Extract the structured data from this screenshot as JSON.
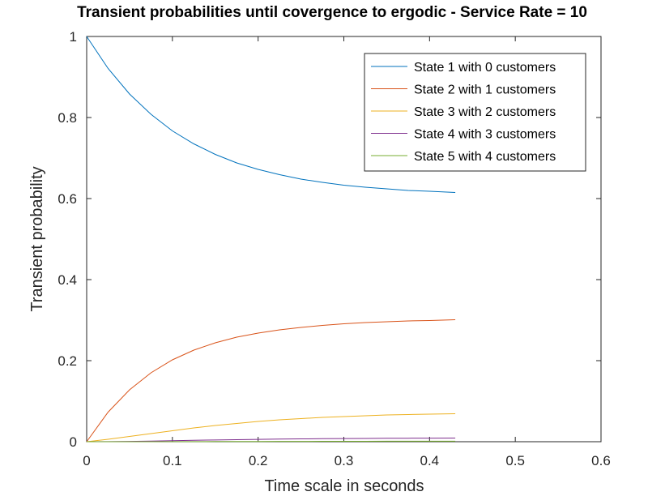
{
  "chart_data": {
    "type": "line",
    "title": "Transient probabilities until covergence to ergodic - Service Rate = 10",
    "xlabel": "Time scale in seconds",
    "ylabel": "Transient probability",
    "xlim": [
      0,
      0.6
    ],
    "ylim": [
      0,
      1
    ],
    "xticks": [
      0,
      0.1,
      0.2,
      0.3,
      0.4,
      0.5,
      0.6
    ],
    "xtick_labels": [
      "0",
      "0.1",
      "0.2",
      "0.3",
      "0.4",
      "0.5",
      "0.6"
    ],
    "yticks": [
      0,
      0.2,
      0.4,
      0.6,
      0.8,
      1
    ],
    "ytick_labels": [
      "0",
      "0.2",
      "0.4",
      "0.6",
      "0.8",
      "1"
    ],
    "grid": false,
    "legend_position": "top-right",
    "x": [
      0,
      0.025,
      0.05,
      0.075,
      0.1,
      0.125,
      0.15,
      0.175,
      0.2,
      0.225,
      0.25,
      0.275,
      0.3,
      0.325,
      0.35,
      0.375,
      0.4,
      0.43
    ],
    "series": [
      {
        "name": "State 1 with 0 customers",
        "color": "#0072BD",
        "values": [
          1.0,
          0.921,
          0.858,
          0.808,
          0.767,
          0.735,
          0.709,
          0.688,
          0.672,
          0.659,
          0.648,
          0.64,
          0.633,
          0.628,
          0.624,
          0.62,
          0.618,
          0.615
        ]
      },
      {
        "name": "State 2 with 1 customers",
        "color": "#D95319",
        "values": [
          0.0,
          0.073,
          0.128,
          0.17,
          0.202,
          0.226,
          0.244,
          0.258,
          0.268,
          0.276,
          0.282,
          0.287,
          0.291,
          0.294,
          0.296,
          0.298,
          0.299,
          0.301
        ]
      },
      {
        "name": "State 3 with 2 customers",
        "color": "#EDB120",
        "values": [
          0.0,
          0.006,
          0.013,
          0.02,
          0.027,
          0.034,
          0.04,
          0.045,
          0.05,
          0.054,
          0.057,
          0.06,
          0.062,
          0.064,
          0.066,
          0.067,
          0.068,
          0.069
        ]
      },
      {
        "name": "State 4 with 3 customers",
        "color": "#7E2F8E",
        "values": [
          0.0,
          0.0002,
          0.0008,
          0.0016,
          0.0025,
          0.0034,
          0.0043,
          0.0051,
          0.0058,
          0.0064,
          0.0069,
          0.0074,
          0.0078,
          0.0081,
          0.0084,
          0.0086,
          0.0088,
          0.009
        ]
      },
      {
        "name": "State 5 with 4 customers",
        "color": "#77AC30",
        "values": [
          0.0,
          1e-05,
          5e-05,
          0.0001,
          0.0002,
          0.0003,
          0.0004,
          0.0005,
          0.0006,
          0.0007,
          0.0008,
          0.0009,
          0.001,
          0.0011,
          0.0012,
          0.0012,
          0.0013,
          0.0013
        ]
      }
    ]
  }
}
